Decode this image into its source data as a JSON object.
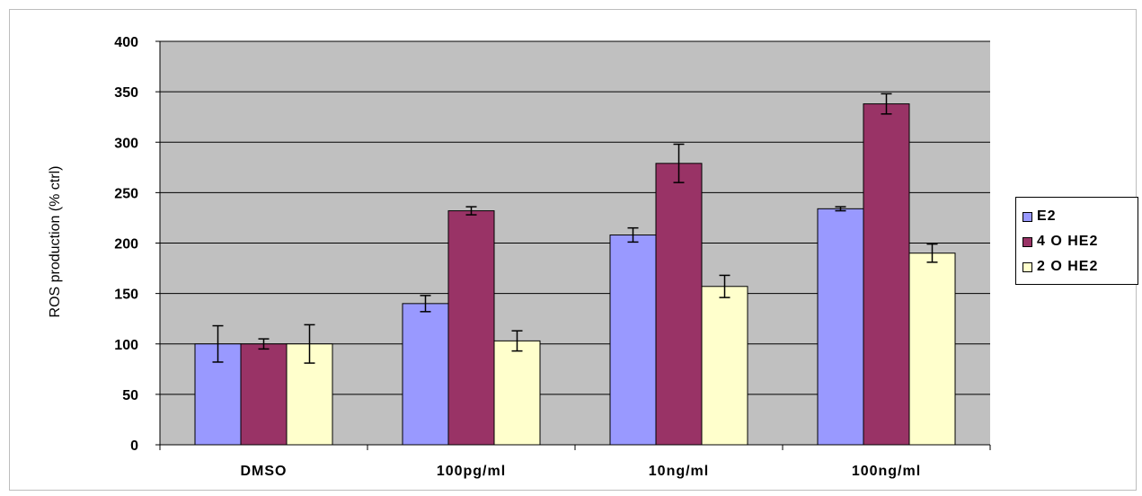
{
  "chart_data": {
    "type": "bar",
    "ylabel": "ROS production (% ctrl)",
    "xlabel": "",
    "ylim": [
      0,
      400
    ],
    "y_ticks": [
      "0",
      "50",
      "100",
      "150",
      "200",
      "250",
      "300",
      "350",
      "400"
    ],
    "grid": true,
    "legend_position": "right",
    "categories": [
      "DMSO",
      "100pg/ml",
      "10ng/ml",
      "100ng/ml"
    ],
    "series": [
      {
        "name": "E2",
        "color": "#9999ff",
        "values": [
          100,
          140,
          208,
          234
        ],
        "errors": [
          18,
          8,
          7,
          2
        ]
      },
      {
        "name": "4 O HE2",
        "color": "#993366",
        "values": [
          100,
          232,
          279,
          338
        ],
        "errors": [
          5,
          4,
          19,
          10
        ]
      },
      {
        "name": "2 O HE2",
        "color": "#ffffcc",
        "values": [
          100,
          103,
          157,
          190
        ],
        "errors": [
          19,
          10,
          11,
          9
        ]
      }
    ],
    "plot_background": "#c0c0c0"
  }
}
